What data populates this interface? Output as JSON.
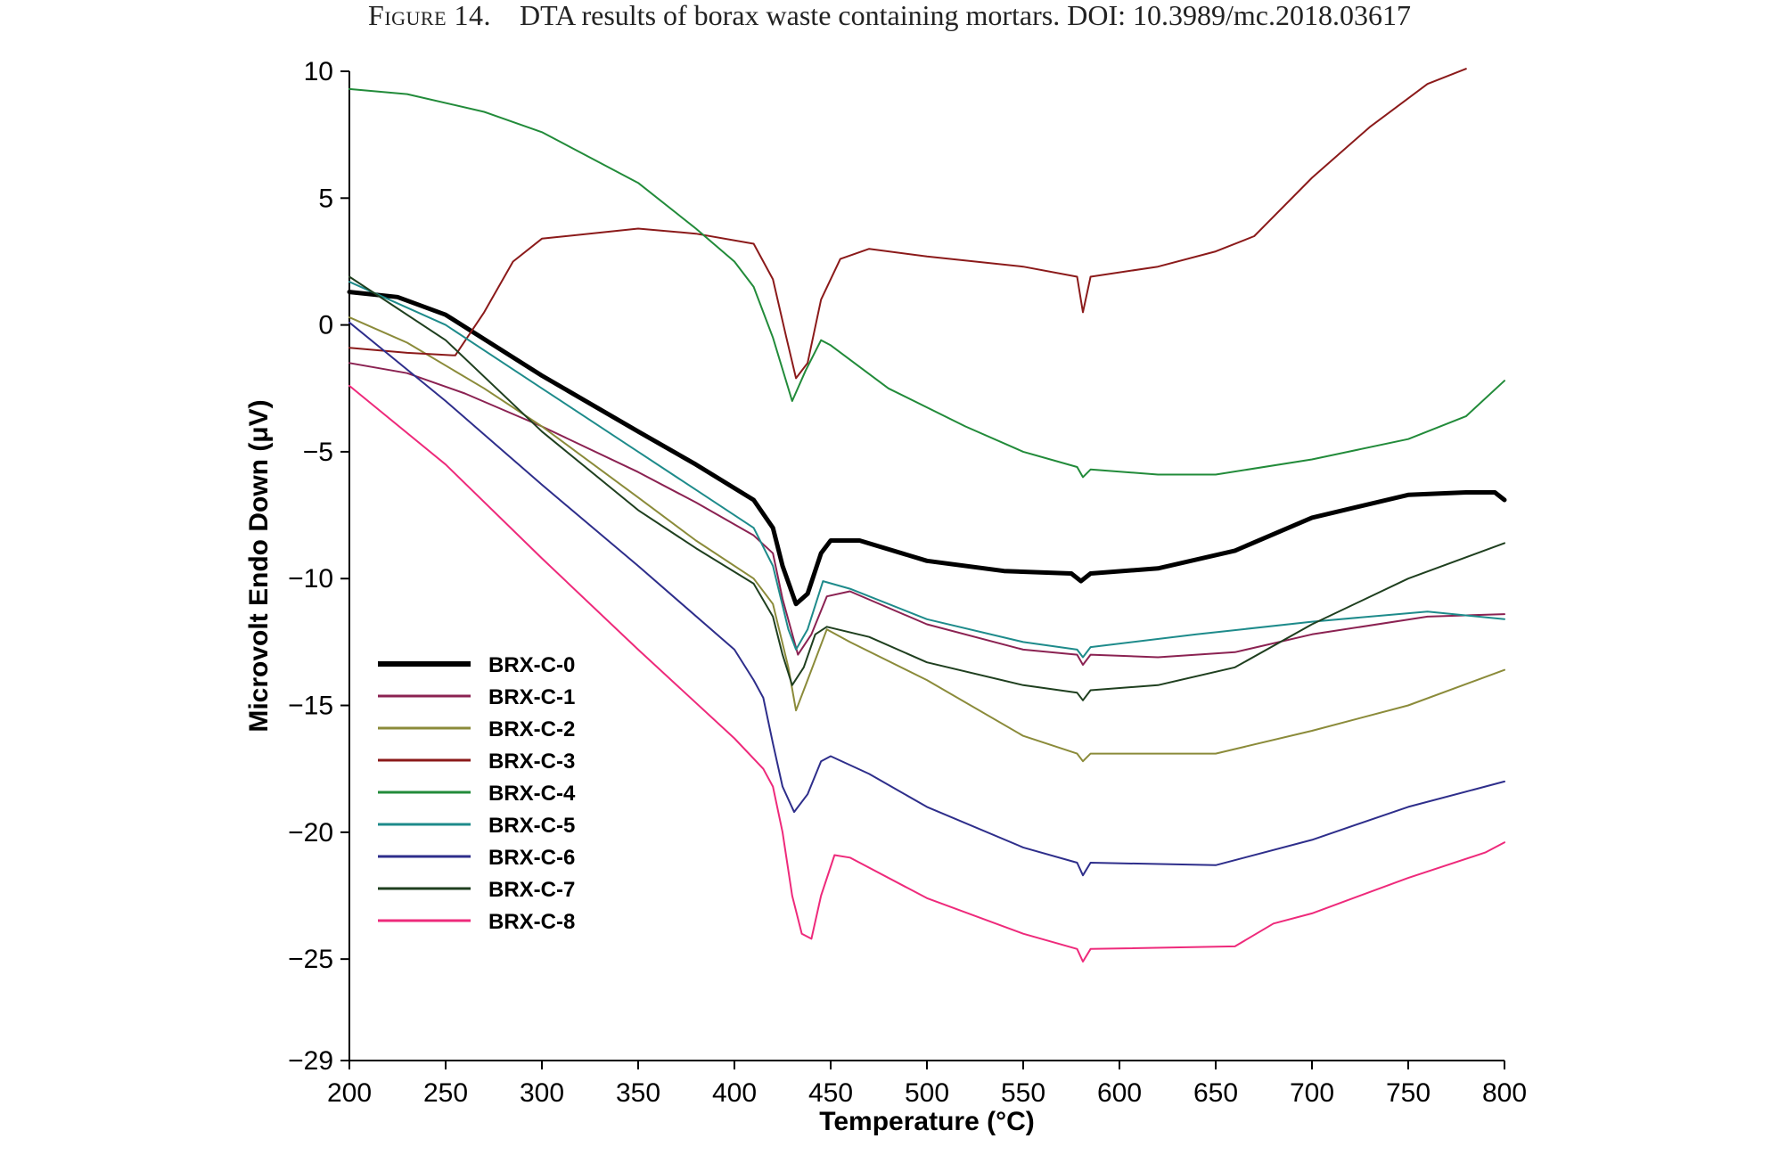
{
  "caption": {
    "figure_label": "Figure 14.",
    "text": "DTA results of borax waste containing mortars. DOI: 10.3989/mc.2018.03617"
  },
  "chart_data": {
    "type": "line",
    "title": "",
    "xlabel": "Temperature (°C)",
    "ylabel": "Microvolt Endo Down (μV)",
    "xlim": [
      200,
      800
    ],
    "ylim": [
      -29,
      10
    ],
    "xticks": [
      200,
      250,
      300,
      350,
      400,
      450,
      500,
      550,
      600,
      650,
      700,
      750,
      800
    ],
    "yticks": [
      10,
      5,
      0,
      -5,
      -10,
      -15,
      -20,
      -25,
      -29
    ],
    "grid": false,
    "legend_position": "lower-left",
    "series": [
      {
        "name": "BRX-C-0",
        "color": "#000000",
        "width": 5,
        "points": [
          [
            200,
            1.3
          ],
          [
            225,
            1.1
          ],
          [
            250,
            0.4
          ],
          [
            300,
            -2.0
          ],
          [
            350,
            -4.2
          ],
          [
            380,
            -5.5
          ],
          [
            410,
            -6.9
          ],
          [
            420,
            -8.0
          ],
          [
            425,
            -9.5
          ],
          [
            432,
            -11.0
          ],
          [
            438,
            -10.6
          ],
          [
            445,
            -9.0
          ],
          [
            450,
            -8.5
          ],
          [
            465,
            -8.5
          ],
          [
            500,
            -9.3
          ],
          [
            540,
            -9.7
          ],
          [
            575,
            -9.8
          ],
          [
            580,
            -10.1
          ],
          [
            585,
            -9.8
          ],
          [
            620,
            -9.6
          ],
          [
            660,
            -8.9
          ],
          [
            700,
            -7.6
          ],
          [
            750,
            -6.7
          ],
          [
            780,
            -6.6
          ],
          [
            795,
            -6.6
          ],
          [
            800,
            -6.9
          ]
        ]
      },
      {
        "name": "BRX-C-1",
        "color": "#8b2252",
        "width": 2,
        "points": [
          [
            200,
            -1.5
          ],
          [
            230,
            -1.9
          ],
          [
            260,
            -2.7
          ],
          [
            300,
            -4.0
          ],
          [
            350,
            -5.8
          ],
          [
            380,
            -7.0
          ],
          [
            410,
            -8.3
          ],
          [
            420,
            -9.0
          ],
          [
            425,
            -10.8
          ],
          [
            433,
            -13.0
          ],
          [
            440,
            -12.2
          ],
          [
            448,
            -10.7
          ],
          [
            460,
            -10.5
          ],
          [
            500,
            -11.8
          ],
          [
            550,
            -12.8
          ],
          [
            578,
            -13.0
          ],
          [
            581,
            -13.4
          ],
          [
            585,
            -13.0
          ],
          [
            620,
            -13.1
          ],
          [
            660,
            -12.9
          ],
          [
            700,
            -12.2
          ],
          [
            760,
            -11.5
          ],
          [
            800,
            -11.4
          ]
        ]
      },
      {
        "name": "BRX-C-2",
        "color": "#8b8b3a",
        "width": 2,
        "points": [
          [
            200,
            0.3
          ],
          [
            230,
            -0.7
          ],
          [
            270,
            -2.5
          ],
          [
            300,
            -4.0
          ],
          [
            350,
            -6.8
          ],
          [
            380,
            -8.5
          ],
          [
            410,
            -10.0
          ],
          [
            420,
            -11.0
          ],
          [
            428,
            -13.5
          ],
          [
            432,
            -15.2
          ],
          [
            438,
            -14.0
          ],
          [
            448,
            -12.0
          ],
          [
            460,
            -12.5
          ],
          [
            500,
            -14.0
          ],
          [
            550,
            -16.2
          ],
          [
            578,
            -16.9
          ],
          [
            581,
            -17.2
          ],
          [
            585,
            -16.9
          ],
          [
            650,
            -16.9
          ],
          [
            700,
            -16.0
          ],
          [
            750,
            -15.0
          ],
          [
            800,
            -13.6
          ]
        ]
      },
      {
        "name": "BRX-C-3",
        "color": "#8b1a1a",
        "width": 2,
        "points": [
          [
            200,
            -0.9
          ],
          [
            230,
            -1.1
          ],
          [
            255,
            -1.2
          ],
          [
            270,
            0.5
          ],
          [
            285,
            2.5
          ],
          [
            300,
            3.4
          ],
          [
            350,
            3.8
          ],
          [
            380,
            3.6
          ],
          [
            410,
            3.2
          ],
          [
            420,
            1.8
          ],
          [
            427,
            -0.5
          ],
          [
            432,
            -2.1
          ],
          [
            438,
            -1.5
          ],
          [
            445,
            1.0
          ],
          [
            455,
            2.6
          ],
          [
            470,
            3.0
          ],
          [
            500,
            2.7
          ],
          [
            550,
            2.3
          ],
          [
            578,
            1.9
          ],
          [
            581,
            0.5
          ],
          [
            585,
            1.9
          ],
          [
            620,
            2.3
          ],
          [
            650,
            2.9
          ],
          [
            670,
            3.5
          ],
          [
            700,
            5.8
          ],
          [
            730,
            7.8
          ],
          [
            760,
            9.5
          ],
          [
            780,
            10.1
          ]
        ]
      },
      {
        "name": "BRX-C-4",
        "color": "#228b3a",
        "width": 2,
        "points": [
          [
            200,
            9.3
          ],
          [
            230,
            9.1
          ],
          [
            270,
            8.4
          ],
          [
            300,
            7.6
          ],
          [
            350,
            5.6
          ],
          [
            380,
            3.8
          ],
          [
            400,
            2.5
          ],
          [
            410,
            1.5
          ],
          [
            420,
            -0.5
          ],
          [
            430,
            -3.0
          ],
          [
            437,
            -1.8
          ],
          [
            445,
            -0.6
          ],
          [
            450,
            -0.8
          ],
          [
            480,
            -2.5
          ],
          [
            520,
            -4.0
          ],
          [
            550,
            -5.0
          ],
          [
            578,
            -5.6
          ],
          [
            581,
            -6.0
          ],
          [
            585,
            -5.7
          ],
          [
            620,
            -5.9
          ],
          [
            650,
            -5.9
          ],
          [
            700,
            -5.3
          ],
          [
            750,
            -4.5
          ],
          [
            780,
            -3.6
          ],
          [
            800,
            -2.2
          ]
        ]
      },
      {
        "name": "BRX-C-5",
        "color": "#1e8b8b",
        "width": 2,
        "points": [
          [
            200,
            1.7
          ],
          [
            250,
            0.0
          ],
          [
            300,
            -2.5
          ],
          [
            350,
            -5.0
          ],
          [
            380,
            -6.5
          ],
          [
            410,
            -8.0
          ],
          [
            420,
            -9.5
          ],
          [
            428,
            -12.0
          ],
          [
            432,
            -12.8
          ],
          [
            438,
            -12.0
          ],
          [
            446,
            -10.1
          ],
          [
            460,
            -10.4
          ],
          [
            500,
            -11.6
          ],
          [
            550,
            -12.5
          ],
          [
            578,
            -12.8
          ],
          [
            581,
            -13.1
          ],
          [
            585,
            -12.7
          ],
          [
            640,
            -12.2
          ],
          [
            700,
            -11.7
          ],
          [
            760,
            -11.3
          ],
          [
            800,
            -11.6
          ]
        ]
      },
      {
        "name": "BRX-C-6",
        "color": "#2e2e8b",
        "width": 2,
        "points": [
          [
            200,
            0.1
          ],
          [
            250,
            -3.0
          ],
          [
            300,
            -6.3
          ],
          [
            350,
            -9.5
          ],
          [
            400,
            -12.8
          ],
          [
            410,
            -14.0
          ],
          [
            415,
            -14.7
          ],
          [
            420,
            -16.5
          ],
          [
            425,
            -18.2
          ],
          [
            431,
            -19.2
          ],
          [
            438,
            -18.5
          ],
          [
            445,
            -17.2
          ],
          [
            450,
            -17.0
          ],
          [
            470,
            -17.7
          ],
          [
            500,
            -19.0
          ],
          [
            550,
            -20.6
          ],
          [
            578,
            -21.2
          ],
          [
            581,
            -21.7
          ],
          [
            585,
            -21.2
          ],
          [
            650,
            -21.3
          ],
          [
            700,
            -20.3
          ],
          [
            750,
            -19.0
          ],
          [
            800,
            -18.0
          ]
        ]
      },
      {
        "name": "BRX-C-7",
        "color": "#1f3f1f",
        "width": 2,
        "points": [
          [
            200,
            1.9
          ],
          [
            250,
            -0.6
          ],
          [
            300,
            -4.2
          ],
          [
            350,
            -7.3
          ],
          [
            380,
            -8.8
          ],
          [
            410,
            -10.2
          ],
          [
            420,
            -11.5
          ],
          [
            425,
            -13.0
          ],
          [
            430,
            -14.2
          ],
          [
            436,
            -13.5
          ],
          [
            442,
            -12.2
          ],
          [
            448,
            -11.9
          ],
          [
            470,
            -12.3
          ],
          [
            500,
            -13.3
          ],
          [
            550,
            -14.2
          ],
          [
            578,
            -14.5
          ],
          [
            581,
            -14.8
          ],
          [
            585,
            -14.4
          ],
          [
            620,
            -14.2
          ],
          [
            660,
            -13.5
          ],
          [
            700,
            -11.8
          ],
          [
            750,
            -10.0
          ],
          [
            800,
            -8.6
          ]
        ]
      },
      {
        "name": "BRX-C-8",
        "color": "#ee2a7b",
        "width": 2,
        "points": [
          [
            200,
            -2.4
          ],
          [
            250,
            -5.5
          ],
          [
            300,
            -9.2
          ],
          [
            350,
            -12.8
          ],
          [
            400,
            -16.3
          ],
          [
            415,
            -17.5
          ],
          [
            420,
            -18.2
          ],
          [
            425,
            -20.0
          ],
          [
            430,
            -22.5
          ],
          [
            435,
            -24.0
          ],
          [
            440,
            -24.2
          ],
          [
            445,
            -22.5
          ],
          [
            452,
            -20.9
          ],
          [
            460,
            -21.0
          ],
          [
            500,
            -22.6
          ],
          [
            550,
            -24.0
          ],
          [
            578,
            -24.6
          ],
          [
            581,
            -25.1
          ],
          [
            585,
            -24.6
          ],
          [
            660,
            -24.5
          ],
          [
            680,
            -23.6
          ],
          [
            700,
            -23.2
          ],
          [
            750,
            -21.8
          ],
          [
            790,
            -20.8
          ],
          [
            800,
            -20.4
          ]
        ]
      }
    ]
  }
}
